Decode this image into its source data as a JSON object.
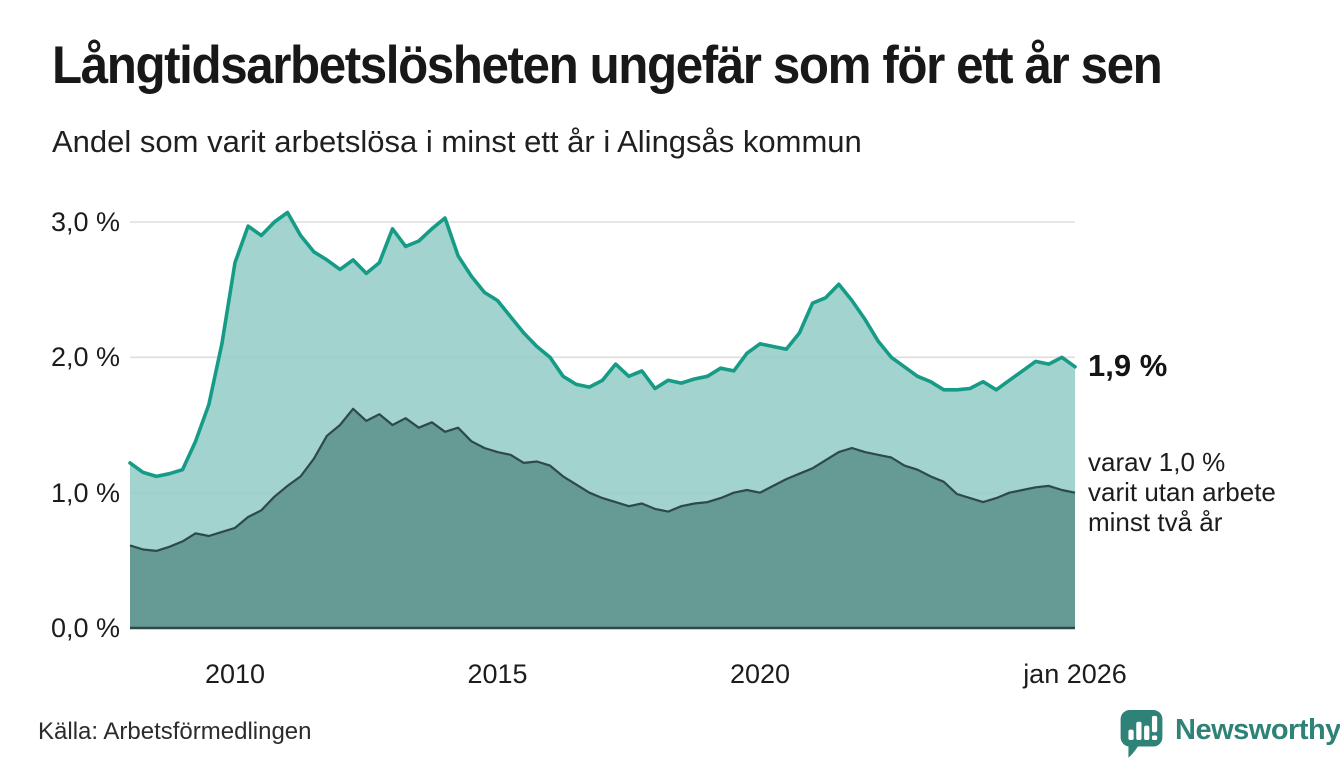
{
  "header": {
    "title": "Långtidsarbetslösheten ungefär som för ett år sen",
    "subtitle": "Andel som varit arbetslösa i minst ett år i Alingsås kommun"
  },
  "chart_data": {
    "type": "area",
    "title": "Långtidsarbetslösheten ungefär som för ett år sen",
    "subtitle": "Andel som varit arbetslösa i minst ett år i Alingsås kommun",
    "unit": "%",
    "grid": true,
    "legend": false,
    "x_range": [
      2008,
      2026
    ],
    "ylim": [
      0,
      3.3
    ],
    "x": [
      2008,
      2008.25,
      2008.5,
      2008.75,
      2009,
      2009.25,
      2009.5,
      2009.75,
      2010,
      2010.25,
      2010.5,
      2010.75,
      2011,
      2011.25,
      2011.5,
      2011.75,
      2012,
      2012.25,
      2012.5,
      2012.75,
      2013,
      2013.25,
      2013.5,
      2013.75,
      2014,
      2014.25,
      2014.5,
      2014.75,
      2015,
      2015.25,
      2015.5,
      2015.75,
      2016,
      2016.25,
      2016.5,
      2016.75,
      2017,
      2017.25,
      2017.5,
      2017.75,
      2018,
      2018.25,
      2018.5,
      2018.75,
      2019,
      2019.25,
      2019.5,
      2019.75,
      2020,
      2020.25,
      2020.5,
      2020.75,
      2021,
      2021.25,
      2021.5,
      2021.75,
      2022,
      2022.25,
      2022.5,
      2022.75,
      2023,
      2023.25,
      2023.5,
      2023.75,
      2024,
      2024.25,
      2024.5,
      2024.75,
      2025,
      2025.25,
      2025.5,
      2025.75,
      2026
    ],
    "series": [
      {
        "name": "Arbetslösa minst ett år",
        "values": [
          1.22,
          1.15,
          1.12,
          1.14,
          1.17,
          1.38,
          1.65,
          2.1,
          2.7,
          2.97,
          2.9,
          3.0,
          3.07,
          2.9,
          2.78,
          2.72,
          2.65,
          2.72,
          2.62,
          2.7,
          2.95,
          2.82,
          2.86,
          2.95,
          3.03,
          2.75,
          2.6,
          2.48,
          2.42,
          2.3,
          2.18,
          2.08,
          2.0,
          1.86,
          1.8,
          1.78,
          1.83,
          1.95,
          1.86,
          1.9,
          1.77,
          1.83,
          1.81,
          1.84,
          1.86,
          1.92,
          1.9,
          2.03,
          2.1,
          2.08,
          2.06,
          2.18,
          2.4,
          2.44,
          2.54,
          2.42,
          2.28,
          2.12,
          2.0,
          1.93,
          1.86,
          1.82,
          1.76,
          1.76,
          1.77,
          1.82,
          1.76,
          1.83,
          1.9,
          1.97,
          1.95,
          2.0,
          1.93
        ]
      },
      {
        "name": "varav arbetslösa minst två år",
        "values": [
          0.61,
          0.58,
          0.57,
          0.6,
          0.64,
          0.7,
          0.68,
          0.71,
          0.74,
          0.82,
          0.87,
          0.97,
          1.05,
          1.12,
          1.25,
          1.42,
          1.5,
          1.62,
          1.53,
          1.58,
          1.5,
          1.55,
          1.48,
          1.52,
          1.45,
          1.48,
          1.38,
          1.33,
          1.3,
          1.28,
          1.22,
          1.23,
          1.2,
          1.12,
          1.06,
          1.0,
          0.96,
          0.93,
          0.9,
          0.92,
          0.88,
          0.86,
          0.9,
          0.92,
          0.93,
          0.96,
          1.0,
          1.02,
          1.0,
          1.05,
          1.1,
          1.14,
          1.18,
          1.24,
          1.3,
          1.33,
          1.3,
          1.28,
          1.26,
          1.2,
          1.17,
          1.12,
          1.08,
          0.99,
          0.96,
          0.93,
          0.96,
          1.0,
          1.02,
          1.04,
          1.05,
          1.02,
          1.0
        ]
      }
    ],
    "y_ticks": [
      {
        "value": 3,
        "label": "3,0 %"
      },
      {
        "value": 2,
        "label": "2,0 %"
      },
      {
        "value": 1,
        "label": "1,0 %"
      },
      {
        "value": 0,
        "label": "0,0 %"
      }
    ],
    "x_ticks": [
      {
        "year": 2010,
        "label": "2010"
      },
      {
        "year": 2015,
        "label": "2015"
      },
      {
        "year": 2020,
        "label": "2020"
      },
      {
        "year": 2026,
        "label": "jan 2026"
      }
    ],
    "annotations": {
      "end_total": {
        "text": "1,9 %",
        "anchor_value": 1.93
      },
      "end_two_years": {
        "lines": [
          "varav 1,0 %",
          "varit utan arbete",
          "minst två år"
        ],
        "anchor_value": 1.0
      }
    },
    "colors": {
      "line_total": "#169c86",
      "fill_total": "#92cbc6",
      "line_two_years": "#2e4a48",
      "fill_two_years": "#5f938e",
      "grid": "#dedede",
      "logo": "#2e8278"
    }
  },
  "footer": {
    "source": "Källa: Arbetsförmedlingen",
    "logo_text": "Newsworthy"
  }
}
